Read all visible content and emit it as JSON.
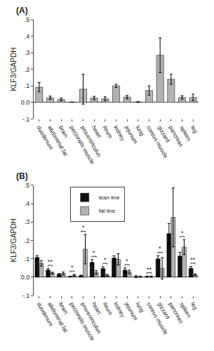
{
  "chart_data": [
    {
      "type": "bar",
      "title": "(A)",
      "categories": [
        "duodenum",
        "abdominal fat",
        "brain",
        "pectoralis muscle",
        "proventriculus",
        "heart",
        "ileum",
        "kidney",
        "jejunum",
        "lung",
        "coreus muscle",
        "gizzard",
        "pancreas",
        "spleen",
        "leg"
      ],
      "values": [
        0.092,
        0.028,
        0.018,
        0.002,
        0.08,
        0.027,
        0.022,
        0.1,
        0.032,
        0.003,
        0.072,
        0.285,
        0.14,
        0.03,
        0.03
      ],
      "errors": [
        0.028,
        0.01,
        0.008,
        0.001,
        0.09,
        0.01,
        0.012,
        0.01,
        0.01,
        0.002,
        0.028,
        0.105,
        0.03,
        0.01,
        0.02
      ],
      "color": "#b2b2b2",
      "ylabel": "KLF3/GAPDH",
      "ylim": [
        -0.1,
        0.5
      ],
      "yticks": [
        {
          "value": -0.1,
          "label": "-.1"
        },
        {
          "value": 0.0,
          "label": "0.0"
        },
        {
          "value": 0.1,
          "label": ".1"
        },
        {
          "value": 0.2,
          "label": ".2"
        },
        {
          "value": 0.3,
          "label": ".3"
        },
        {
          "value": 0.4,
          "label": ".4"
        },
        {
          "value": 0.5,
          "label": ".5"
        }
      ],
      "grid": false
    },
    {
      "type": "bar",
      "title": "(B)",
      "categories": [
        "duodenum",
        "abdominal fat",
        "brain",
        "pectoralis muscle",
        "proventriculus",
        "heart",
        "ileum",
        "kidney",
        "jejunum",
        "lung",
        "coreus muscle",
        "gizzard",
        "pancreas",
        "spleen",
        "leg"
      ],
      "series": [
        {
          "name": "lean line",
          "color": "#111111",
          "values": [
            0.107,
            0.038,
            0.015,
            0.003,
            0.008,
            0.08,
            0.047,
            0.104,
            0.038,
            0.003,
            0.003,
            0.099,
            0.237,
            0.115,
            0.048
          ],
          "errors": [
            0.01,
            0.008,
            0.005,
            0.002,
            0.003,
            0.015,
            0.01,
            0.012,
            0.012,
            0.005,
            0.003,
            0.018,
            0.055,
            0.02,
            0.01
          ]
        },
        {
          "name": "fat line",
          "color": "#b2b2b2",
          "values": [
            0.075,
            0.022,
            0.02,
            0.01,
            0.152,
            0.025,
            0.01,
            0.097,
            0.028,
            0.003,
            0.003,
            0.048,
            0.325,
            0.163,
            0.013
          ],
          "errors": [
            0.015,
            0.005,
            0.008,
            0.005,
            0.08,
            0.01,
            0.005,
            0.03,
            0.01,
            0.003,
            0.003,
            0.058,
            0.16,
            0.04,
            0.005
          ]
        }
      ],
      "annotations": [
        {
          "category": "abdominal fat",
          "text": "**"
        },
        {
          "category": "pectoralis muscle",
          "text": "*"
        },
        {
          "category": "proventriculus",
          "text": "*"
        },
        {
          "category": "heart",
          "text": "*"
        },
        {
          "category": "ileum",
          "text": "*"
        },
        {
          "category": "jejunum",
          "text": "*"
        },
        {
          "category": "coreus muscle",
          "text": "**"
        },
        {
          "category": "gizzard",
          "text": "*"
        },
        {
          "category": "spleen",
          "text": "*"
        },
        {
          "category": "leg",
          "text": "**"
        }
      ],
      "ylabel": "KLF3/GAPDH",
      "ylim": [
        -0.1,
        0.5
      ],
      "yticks": [
        {
          "value": -0.1,
          "label": "-.1"
        },
        {
          "value": 0.0,
          "label": "0.0"
        },
        {
          "value": 0.1,
          "label": ".1"
        },
        {
          "value": 0.2,
          "label": ".2"
        },
        {
          "value": 0.3,
          "label": ".3"
        },
        {
          "value": 0.4,
          "label": ".4"
        },
        {
          "value": 0.5,
          "label": ".5"
        }
      ],
      "grid": false,
      "legend": "upper left"
    }
  ]
}
